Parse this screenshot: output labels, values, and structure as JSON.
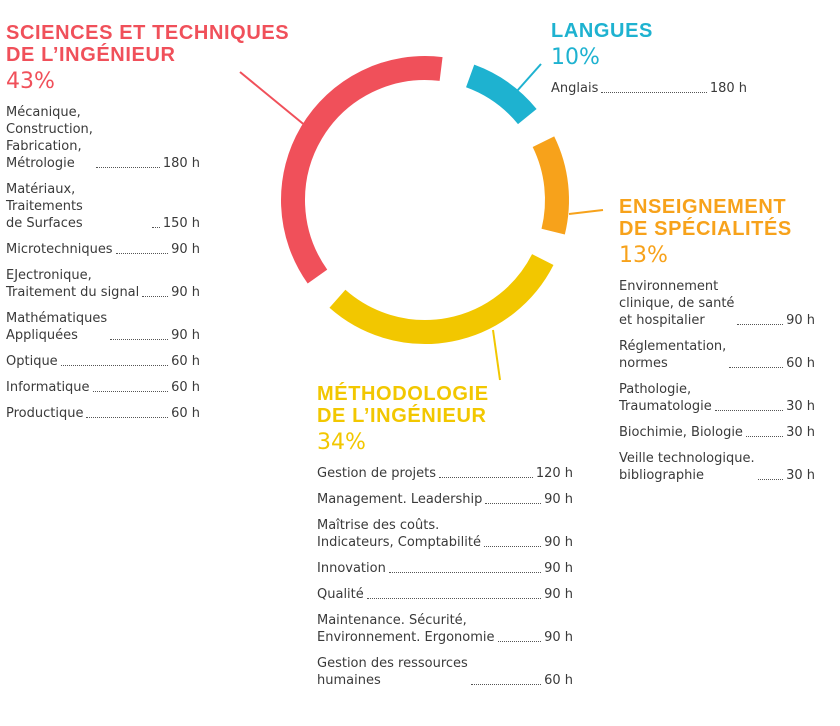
{
  "chart_data": {
    "type": "pie",
    "style": "donut",
    "slices": [
      {
        "key": "sci",
        "title_lines": [
          "SCIENCES ET TECHNIQUES",
          "DE L’INGÉNIEUR"
        ],
        "percent_label": "43%",
        "value": 43,
        "color": "#f0505a",
        "items": [
          {
            "label": "Mécanique,\nConstruction,\nFabrication,\nMétrologie",
            "hours": "180 h"
          },
          {
            "label": "Matériaux, Traitements\nde Surfaces",
            "hours": "150 h"
          },
          {
            "label": "Microtechniques",
            "hours": "90 h"
          },
          {
            "label": "EJectronique,\nTraitement du signal",
            "hours": "90 h"
          },
          {
            "label": "Mathématiques\nAppliquées",
            "hours": "90 h"
          },
          {
            "label": "Optique",
            "hours": "60 h"
          },
          {
            "label": "Informatique",
            "hours": "60 h"
          },
          {
            "label": "Productique",
            "hours": "60 h"
          }
        ]
      },
      {
        "key": "lang",
        "title_lines": [
          "LANGUES"
        ],
        "percent_label": "10%",
        "value": 10,
        "color": "#1eb2d0",
        "items": [
          {
            "label": "Anglais",
            "hours": "180 h"
          }
        ]
      },
      {
        "key": "spec",
        "title_lines": [
          "ENSEIGNEMENT",
          "DE SPÉCIALITÉS"
        ],
        "percent_label": "13%",
        "value": 13,
        "color": "#f7a21b",
        "items": [
          {
            "label": "Environnement\nclinique, de santé\net hospitalier",
            "hours": "90 h"
          },
          {
            "label": "Réglementation,\nnormes",
            "hours": "60 h"
          },
          {
            "label": "Pathologie,\nTraumatologie",
            "hours": "30 h"
          },
          {
            "label": "Biochimie, Biologie",
            "hours": "30 h"
          },
          {
            "label": "Veille technologique.\nbibliographie",
            "hours": "30 h"
          }
        ]
      },
      {
        "key": "meth",
        "title_lines": [
          "MÉTHODOLOGIE",
          "DE L’INGÉNIEUR"
        ],
        "percent_label": "34%",
        "value": 34,
        "color": "#f2c700",
        "items": [
          {
            "label": "Gestion de projets",
            "hours": "120 h"
          },
          {
            "label": "Management. Leadership",
            "hours": "90 h"
          },
          {
            "label": "Maîtrise des coûts.\nIndicateurs, Comptabilité",
            "hours": "90 h"
          },
          {
            "label": "Innovation",
            "hours": "90 h"
          },
          {
            "label": "Qualité",
            "hours": "90 h"
          },
          {
            "label": "Maintenance. Sécurité,\nEnvironnement. Ergonomie",
            "hours": "90 h"
          },
          {
            "label": "Gestion des ressources\nhumaines",
            "hours": "60 h"
          }
        ]
      }
    ]
  }
}
